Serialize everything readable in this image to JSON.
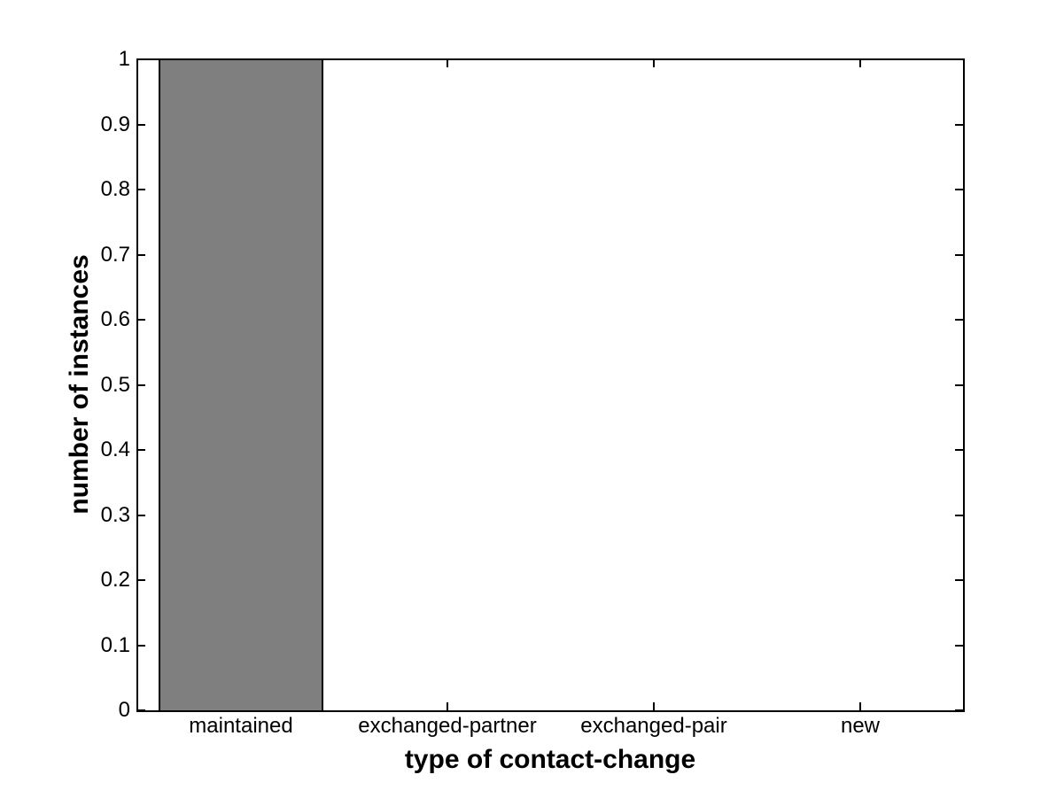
{
  "chart_data": {
    "type": "bar",
    "title": "",
    "categories": [
      "maintained",
      "exchanged-partner",
      "exchanged-pair",
      "new"
    ],
    "values": [
      1,
      0,
      0,
      0
    ],
    "xlabel": "type of contact-change",
    "ylabel": "number of instances",
    "ylim": [
      0,
      1
    ],
    "ytick_values": [
      0,
      0.1,
      0.2,
      0.3,
      0.4,
      0.5,
      0.6,
      0.7,
      0.8,
      0.9,
      1
    ],
    "ytick_labels": [
      "0",
      "0.1",
      "0.2",
      "0.3",
      "0.4",
      "0.5",
      "0.6",
      "0.7",
      "0.8",
      "0.9",
      "1"
    ],
    "bar_width_fraction": 0.8,
    "bar_color": "#7f7f7f",
    "bar_edge_color": "#000000",
    "axis_color": "#000000",
    "background_color": "#ffffff",
    "grid": "off",
    "legend": "none"
  }
}
